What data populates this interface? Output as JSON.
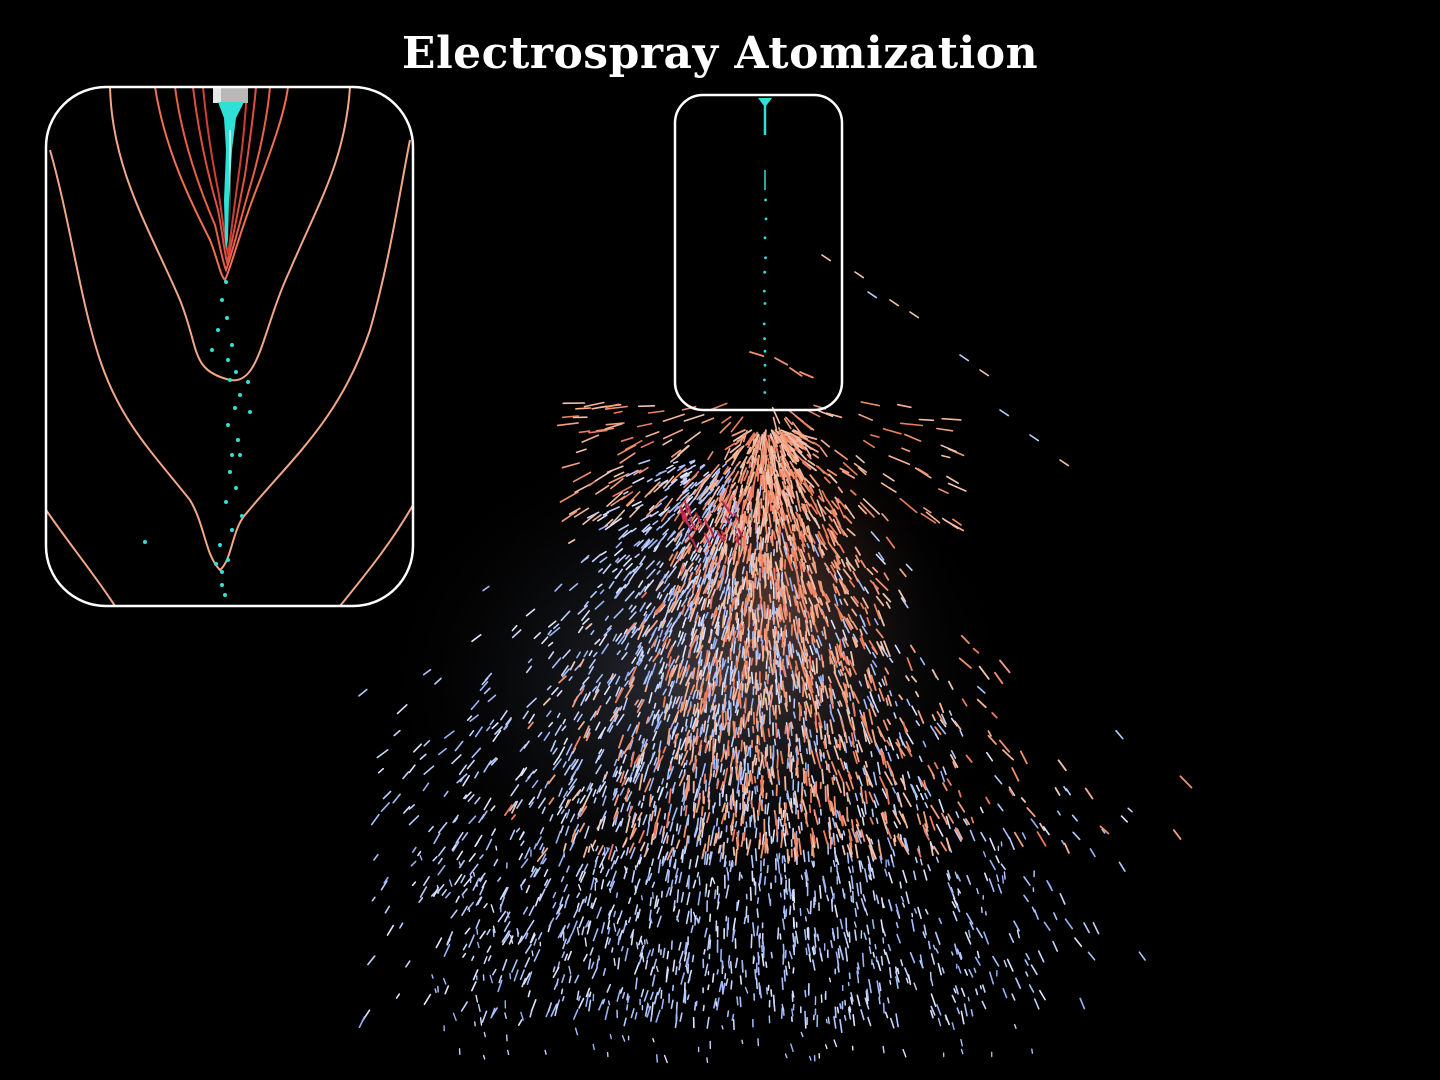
{
  "title": "Electrospray Atomization",
  "colors": {
    "background": "#000000",
    "jet": "#2fe0d6",
    "inset_border": "#ffffff",
    "contour_warm": "#f07050",
    "contour_light": "#f2a888",
    "spray_cool": "#a8c0ff",
    "spray_warm": "#f2906e",
    "spray_hot": "#c83250"
  },
  "zoom_inset": {
    "label": "",
    "content": "magnified view of Taylor cone, jet breakup and equipotential contours"
  },
  "focus_box": {
    "label": "",
    "content": "nozzle and jet region highlighted on main spray"
  }
}
